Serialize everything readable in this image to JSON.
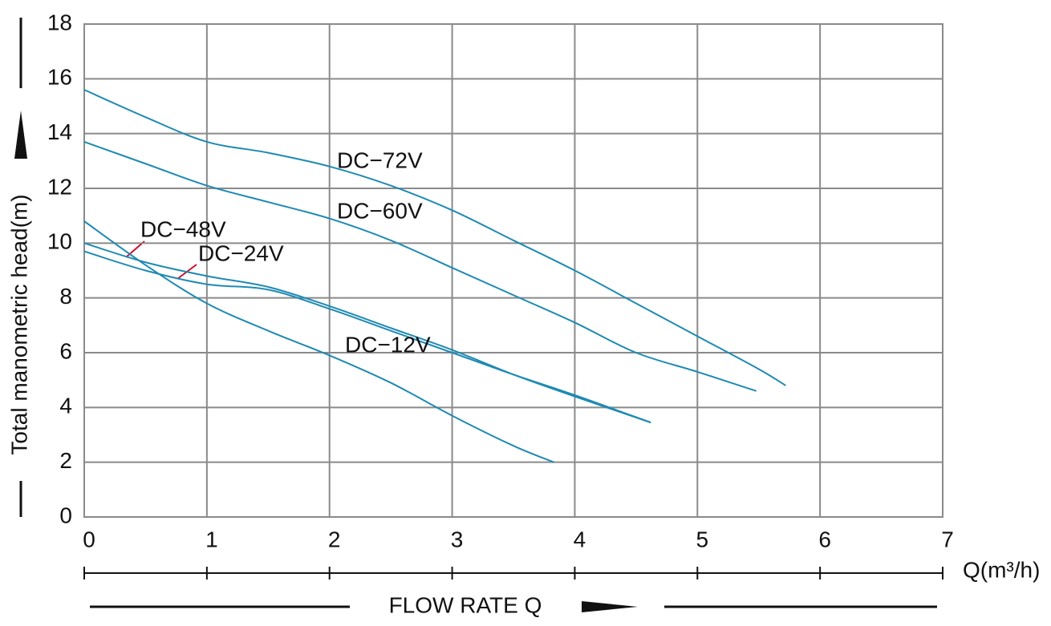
{
  "chart_data": {
    "type": "line",
    "xlabel": "FLOW RATE Q",
    "xunit": "Q(m³/h)",
    "ylabel": "Total manometric head(m)",
    "xlim": [
      0,
      7
    ],
    "xticks": [
      0,
      1,
      2,
      3,
      4,
      5,
      6,
      7
    ],
    "ylim": [
      0,
      18
    ],
    "yticks": [
      0,
      2,
      4,
      6,
      8,
      10,
      12,
      14,
      16,
      18
    ],
    "grid": true,
    "series": [
      {
        "name": "DC−72V",
        "color": "#1f8ab3",
        "x": [
          0,
          0.5,
          1,
          1.5,
          2,
          2.5,
          3,
          3.5,
          4,
          4.5,
          5,
          5.5,
          5.72
        ],
        "values": [
          15.6,
          14.6,
          13.7,
          13.3,
          12.8,
          12.1,
          11.2,
          10.1,
          9.0,
          7.8,
          6.6,
          5.4,
          4.8
        ]
      },
      {
        "name": "DC−60V",
        "color": "#1f8ab3",
        "x": [
          0,
          0.5,
          1,
          1.5,
          2,
          2.5,
          3,
          3.5,
          4,
          4.5,
          5,
          5.48
        ],
        "values": [
          13.7,
          12.9,
          12.1,
          11.5,
          10.9,
          10.1,
          9.1,
          8.1,
          7.1,
          6.0,
          5.3,
          4.6
        ]
      },
      {
        "name": "DC−48V",
        "color": "#1f8ab3",
        "x": [
          0,
          0.5,
          1,
          1.5,
          2,
          2.5,
          3,
          3.5,
          4,
          4.62
        ],
        "values": [
          10.0,
          9.3,
          8.8,
          8.4,
          7.7,
          6.9,
          6.1,
          5.2,
          4.4,
          3.45
        ]
      },
      {
        "name": "DC−24V",
        "color": "#1f8ab3",
        "x": [
          0,
          0.5,
          1,
          1.5,
          2,
          2.5,
          3,
          3.5,
          4,
          4.62
        ],
        "values": [
          9.7,
          9.0,
          8.5,
          8.3,
          7.6,
          6.8,
          6.0,
          5.2,
          4.45,
          3.45
        ]
      },
      {
        "name": "DC−12V",
        "color": "#1f8ab3",
        "x": [
          0,
          0.5,
          1,
          1.5,
          2,
          2.5,
          3,
          3.5,
          3.83
        ],
        "values": [
          10.8,
          9.2,
          7.8,
          6.8,
          5.9,
          4.9,
          3.7,
          2.6,
          2.0
        ]
      }
    ]
  }
}
